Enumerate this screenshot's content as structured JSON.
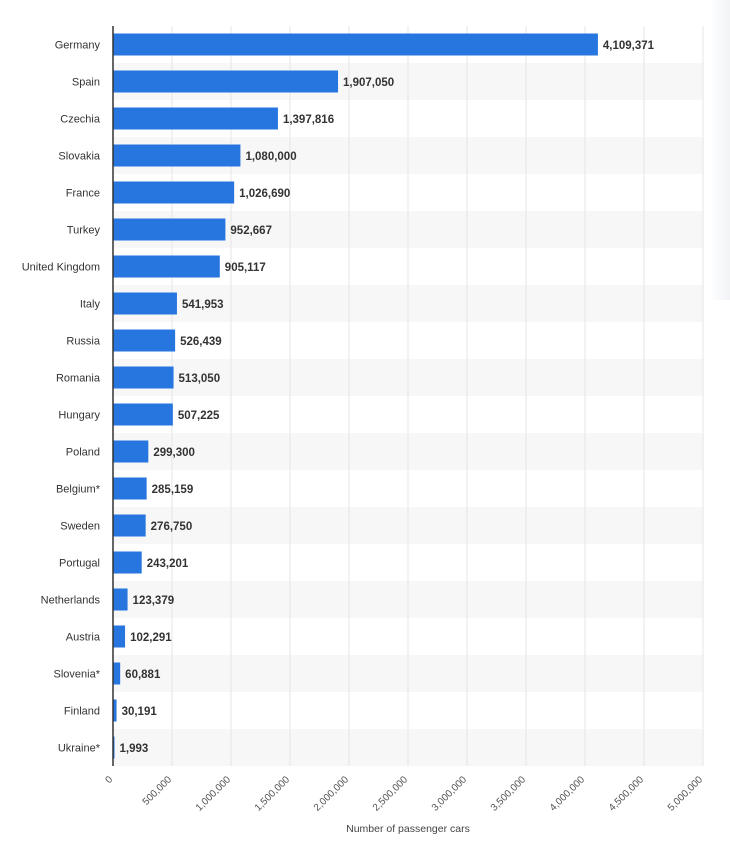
{
  "chart_data": {
    "type": "bar",
    "orientation": "horizontal",
    "categories": [
      "Germany",
      "Spain",
      "Czechia",
      "Slovakia",
      "France",
      "Turkey",
      "United Kingdom",
      "Italy",
      "Russia",
      "Romania",
      "Hungary",
      "Poland",
      "Belgium*",
      "Sweden",
      "Portugal",
      "Netherlands",
      "Austria",
      "Slovenia*",
      "Finland",
      "Ukraine*"
    ],
    "values": [
      4109371,
      1907050,
      1397816,
      1080000,
      1026690,
      952667,
      905117,
      541953,
      526439,
      513050,
      507225,
      299300,
      285159,
      276750,
      243201,
      123379,
      102291,
      60881,
      30191,
      1993
    ],
    "value_labels": [
      "4,109,371",
      "1,907,050",
      "1,397,816",
      "1,080,000",
      "1,026,690",
      "952,667",
      "905,117",
      "541,953",
      "526,439",
      "513,050",
      "507,225",
      "299,300",
      "285,159",
      "276,750",
      "243,201",
      "123,379",
      "102,291",
      "60,881",
      "30,191",
      "1,993"
    ],
    "xlim": [
      0,
      5000000
    ],
    "xticks": [
      0,
      500000,
      1000000,
      1500000,
      2000000,
      2500000,
      3000000,
      3500000,
      4000000,
      4500000,
      5000000
    ],
    "xtick_labels": [
      "0",
      "500,000",
      "1,000,000",
      "1,500,000",
      "2,000,000",
      "2,500,000",
      "3,000,000",
      "3,500,000",
      "4,000,000",
      "4,500,000",
      "5,000,000"
    ],
    "xlabel": "Number of passenger cars",
    "ylabel": "",
    "title": "",
    "grid": true,
    "bar_color": "#2776e0",
    "stripe_color": "#f7f7f7"
  }
}
